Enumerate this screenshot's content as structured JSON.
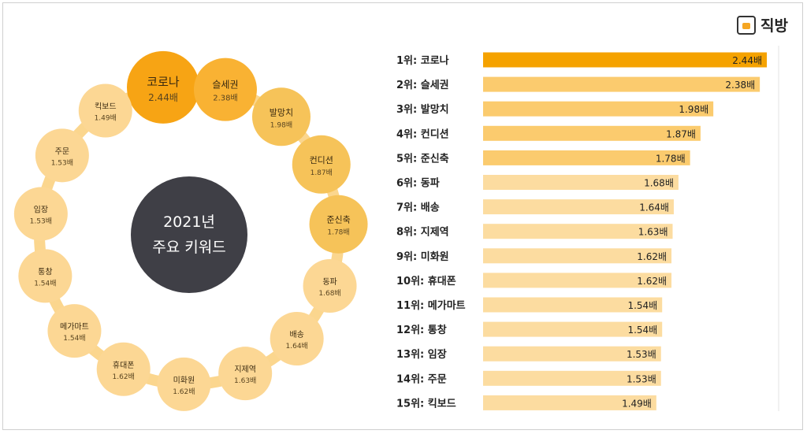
{
  "brand": {
    "name": "직방",
    "icon": "house-icon"
  },
  "colors": {
    "dark": "#3f3f46",
    "ring": "#fbd68e",
    "top1": "#f7a414",
    "top2": "#f9b233",
    "top3": "#f6c359",
    "light": "#fcd794",
    "bar_dark": "#f5a200",
    "bar_mid": "#fbcb6e",
    "bar_light": "#fcdca0"
  },
  "center": {
    "line1": "2021년",
    "line2": "주요 키워드"
  },
  "chart_data": {
    "type": "bar",
    "orientation": "horizontal",
    "ranks": [
      "1위",
      "2위",
      "3위",
      "4위",
      "5위",
      "6위",
      "7위",
      "8위",
      "9위",
      "10위",
      "11위",
      "12위",
      "13위",
      "14위",
      "15위"
    ],
    "categories": [
      "코로나",
      "슬세권",
      "발망치",
      "컨디션",
      "준신축",
      "동파",
      "배송",
      "지제역",
      "미화원",
      "휴대폰",
      "메가마트",
      "통창",
      "임장",
      "주문",
      "킥보드"
    ],
    "values": [
      2.44,
      2.38,
      1.98,
      1.87,
      1.78,
      1.68,
      1.64,
      1.63,
      1.62,
      1.62,
      1.54,
      1.54,
      1.53,
      1.53,
      1.49
    ],
    "value_labels": [
      "2.44배",
      "2.38배",
      "1.98배",
      "1.87배",
      "1.78배",
      "1.68배",
      "1.64배",
      "1.63배",
      "1.62배",
      "1.62배",
      "1.54배",
      "1.54배",
      "1.53배",
      "1.53배",
      "1.49배"
    ]
  }
}
